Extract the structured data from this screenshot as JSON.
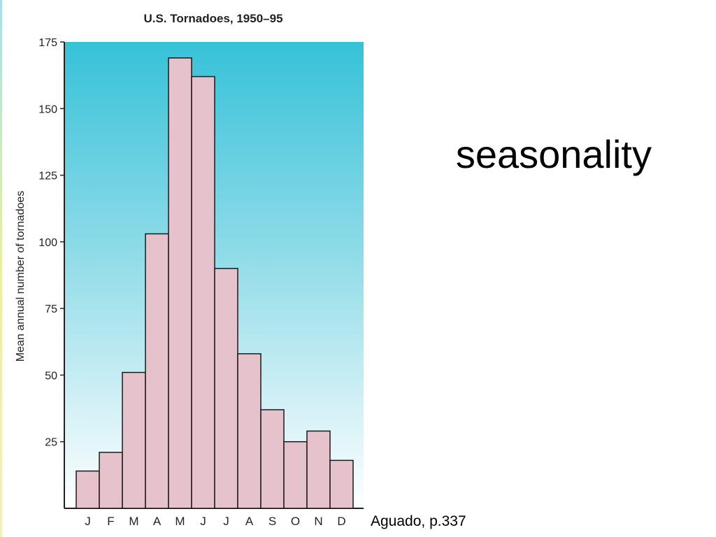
{
  "slide": {
    "heading": "seasonality",
    "citation": "Aguado, p.337"
  },
  "colors": {
    "bar_fill": "#e6c3cc",
    "bar_stroke": "#1a1a1a",
    "plot_bg_top": "#36c2d8",
    "plot_bg_bottom": "#ffffff"
  },
  "chart_data": {
    "type": "bar",
    "title": "U.S. Tornadoes, 1950–95",
    "ylabel": "Mean annual number of tornadoes",
    "xlabel": "",
    "categories": [
      "J",
      "F",
      "M",
      "A",
      "M",
      "J",
      "J",
      "A",
      "S",
      "O",
      "N",
      "D"
    ],
    "values": [
      14,
      21,
      51,
      103,
      169,
      162,
      90,
      58,
      37,
      25,
      29,
      18
    ],
    "ylim": [
      0,
      175
    ],
    "yticks": [
      25,
      50,
      75,
      100,
      125,
      150,
      175
    ],
    "grid": false,
    "legend": "none"
  }
}
